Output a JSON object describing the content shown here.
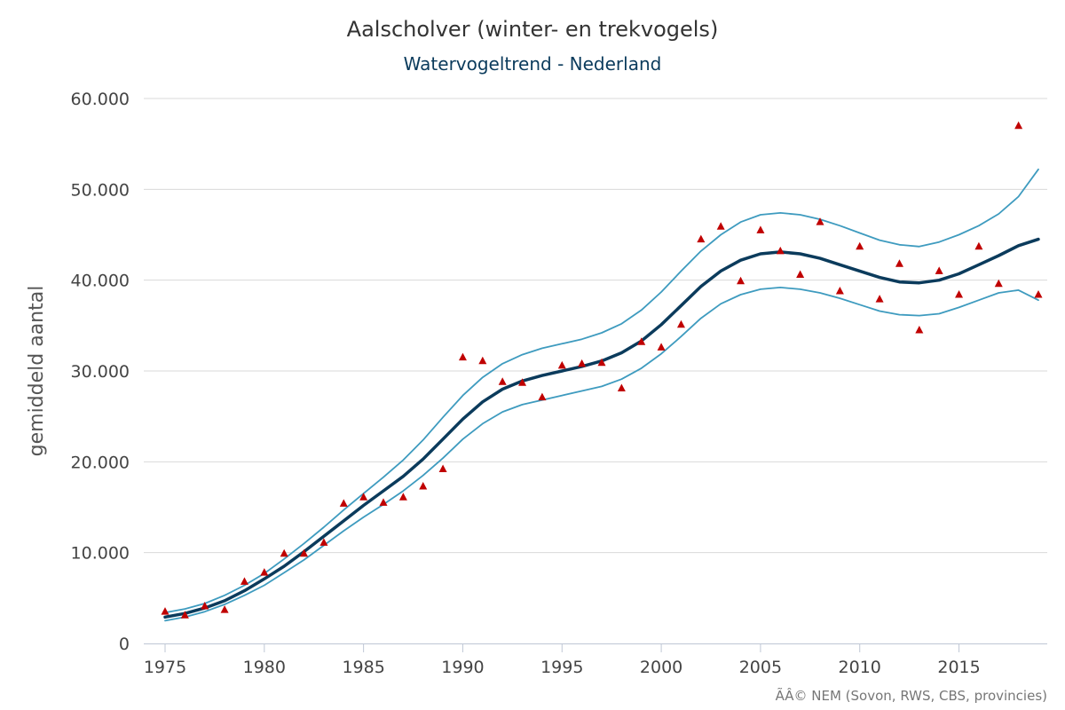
{
  "chart_data": {
    "type": "line",
    "title": "Aalscholver (winter- en trekvogels)",
    "subtitle": "Watervogeltrend - Nederland",
    "ylabel": "gemiddeld aantal",
    "xlabel": "",
    "credit": "ÃÂ© NEM (Sovon, RWS, CBS, provincies)",
    "xlim": [
      1975,
      2019
    ],
    "ylim": [
      0,
      60000
    ],
    "xticks": [
      1975,
      1980,
      1985,
      1990,
      1995,
      2000,
      2005,
      2010,
      2015
    ],
    "xtick_labels": [
      "1975",
      "1980",
      "1985",
      "1990",
      "1995",
      "2000",
      "2005",
      "2010",
      "2015"
    ],
    "yticks": [
      0,
      10000,
      20000,
      30000,
      40000,
      50000,
      60000
    ],
    "ytick_labels": [
      "0",
      "10.000",
      "20.000",
      "30.000",
      "40.000",
      "50.000",
      "60.000"
    ],
    "grid": true,
    "x": [
      1975,
      1976,
      1977,
      1978,
      1979,
      1980,
      1981,
      1982,
      1983,
      1984,
      1985,
      1986,
      1987,
      1988,
      1989,
      1990,
      1991,
      1992,
      1993,
      1994,
      1995,
      1996,
      1997,
      1998,
      1999,
      2000,
      2001,
      2002,
      2003,
      2004,
      2005,
      2006,
      2007,
      2008,
      2009,
      2010,
      2011,
      2012,
      2013,
      2014,
      2015,
      2016,
      2017,
      2018,
      2019
    ],
    "series": [
      {
        "role": "upper",
        "color": "#3e9bbf",
        "values": [
          3400,
          3800,
          4400,
          5300,
          6400,
          7700,
          9300,
          11000,
          12800,
          14700,
          16500,
          18300,
          20200,
          22400,
          24900,
          27300,
          29300,
          30800,
          31800,
          32500,
          33000,
          33500,
          34200,
          35200,
          36700,
          38700,
          41000,
          43200,
          45000,
          46400,
          47200,
          47400,
          47200,
          46700,
          46000,
          45200,
          44400,
          43900,
          43700,
          44200,
          45000,
          46000,
          47300,
          49200,
          52200
        ]
      },
      {
        "role": "trend",
        "color": "#0b3b5c",
        "values": [
          2900,
          3300,
          3900,
          4700,
          5800,
          7100,
          8500,
          10100,
          11800,
          13500,
          15200,
          16800,
          18400,
          20300,
          22500,
          24700,
          26600,
          28000,
          28900,
          29500,
          30000,
          30500,
          31100,
          32000,
          33300,
          35100,
          37200,
          39300,
          41000,
          42200,
          42900,
          43100,
          42900,
          42400,
          41700,
          41000,
          40300,
          39800,
          39700,
          40000,
          40700,
          41700,
          42700,
          43800,
          44500
        ]
      },
      {
        "role": "lower",
        "color": "#3e9bbf",
        "values": [
          2500,
          2900,
          3500,
          4300,
          5300,
          6400,
          7800,
          9200,
          10800,
          12400,
          13900,
          15300,
          16800,
          18500,
          20400,
          22500,
          24200,
          25500,
          26300,
          26800,
          27300,
          27800,
          28300,
          29100,
          30300,
          31900,
          33800,
          35800,
          37400,
          38400,
          39000,
          39200,
          39000,
          38600,
          38000,
          37300,
          36600,
          36200,
          36100,
          36300,
          37000,
          37800,
          38600,
          38900,
          37800
        ]
      }
    ],
    "observations": {
      "marker": "triangle",
      "color": "#c00000",
      "values": [
        3500,
        3100,
        4100,
        3700,
        6800,
        7800,
        9900,
        9900,
        11100,
        15400,
        16100,
        15500,
        16100,
        17300,
        19200,
        31500,
        31100,
        28800,
        28700,
        27100,
        30600,
        30800,
        30900,
        28100,
        33200,
        32600,
        35100,
        44500,
        45900,
        39900,
        45500,
        43200,
        40600,
        46400,
        38800,
        43700,
        37900,
        41800,
        34500,
        41000,
        38400,
        43700,
        39600,
        57000,
        38400
      ]
    }
  }
}
